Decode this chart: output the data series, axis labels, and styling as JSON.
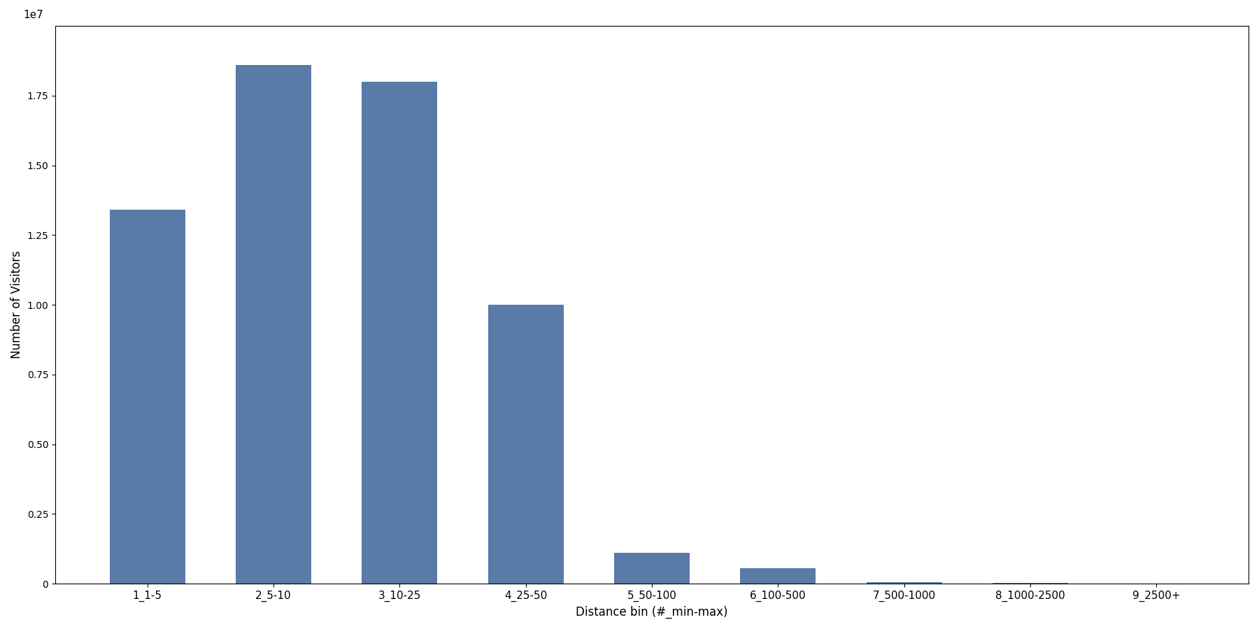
{
  "categories": [
    "1_1-5",
    "2_5-10",
    "3_10-25",
    "4_25-50",
    "5_50-100",
    "6_100-500",
    "7_500-1000",
    "8_1000-2500",
    "9_2500+"
  ],
  "values": [
    13400000,
    18600000,
    18000000,
    10000000,
    1100000,
    550000,
    50000,
    20000,
    5000
  ],
  "bar_color": "#5a7aa8",
  "xlabel": "Distance bin (#_min-max)",
  "ylabel": "Number of Visitors",
  "figsize": [
    18,
    9
  ],
  "dpi": 100,
  "bar_width": 0.6,
  "ylim": [
    0,
    20000000
  ],
  "yticks": [
    0,
    2500000.0,
    5000000.0,
    7500000.0,
    10000000.0,
    12500000.0,
    15000000.0,
    17500000.0
  ]
}
